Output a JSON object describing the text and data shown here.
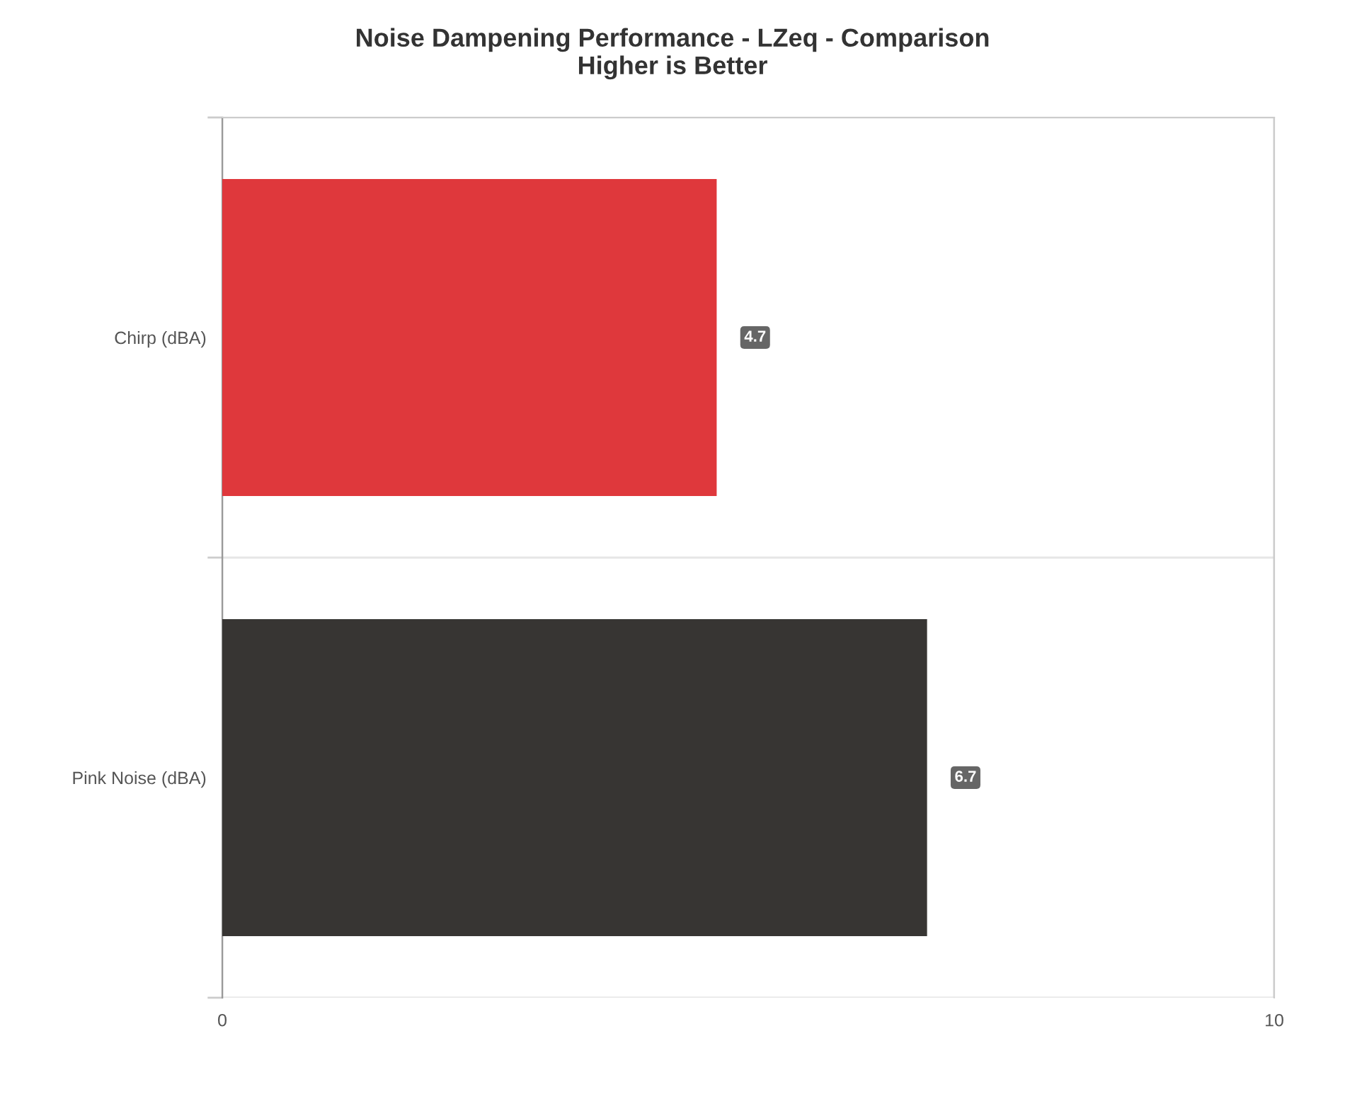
{
  "chart_data": {
    "type": "bar",
    "orientation": "horizontal",
    "title": "Noise Dampening Performance - LZeq - Comparison\nHigher is Better",
    "categories": [
      "Chirp (dBA)",
      "Pink Noise (dBA)"
    ],
    "values": [
      4.7,
      6.7
    ],
    "colors": [
      "#df383c",
      "#373533"
    ],
    "xlim": [
      0,
      10
    ],
    "xticks": [
      0,
      10
    ],
    "grid": true,
    "data_labels": true
  }
}
